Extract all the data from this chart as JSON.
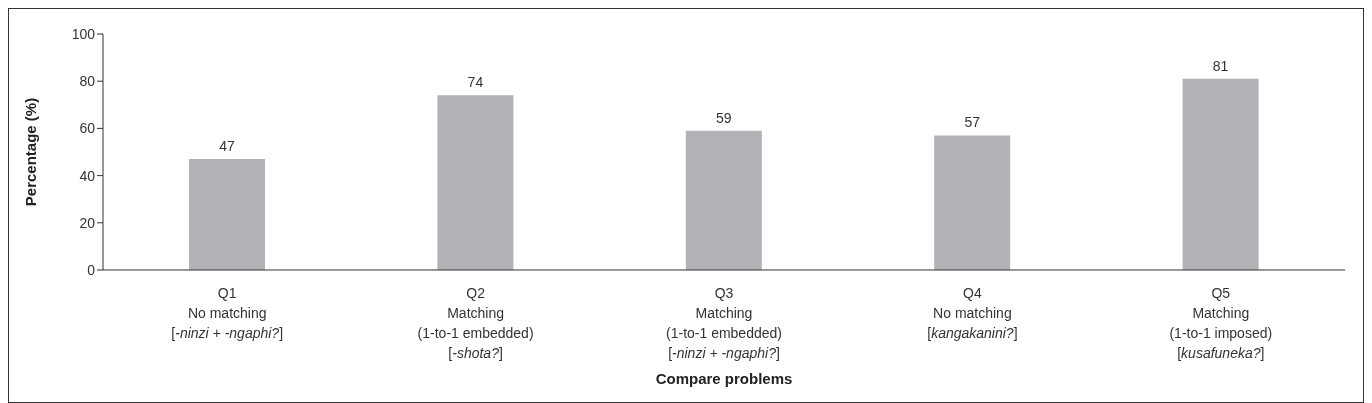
{
  "chart_data": {
    "type": "bar",
    "xlabel": "Compare problems",
    "ylabel": "Percentage (%)",
    "categories": [
      "Q1\nNo matching\n[-ninzi + -ngaphi?]",
      "Q2\nMatching\n(1-to-1 embedded)\n[-shota?]",
      "Q3\nMatching\n(1-to-1 embedded)\n[-ninzi + -ngaphi?]",
      "Q4\nNo matching\n[kangakanini?]",
      "Q5\nMatching\n(1-to-1 imposed)\n[kusafuneka?]"
    ],
    "values": [
      47,
      74,
      59,
      57,
      81
    ],
    "color": "#b1b2b6",
    "ylim": [
      0,
      100
    ],
    "yticks": [
      0,
      20,
      40,
      60,
      80,
      100
    ],
    "data_labels": true,
    "grid": false,
    "legend": false
  }
}
